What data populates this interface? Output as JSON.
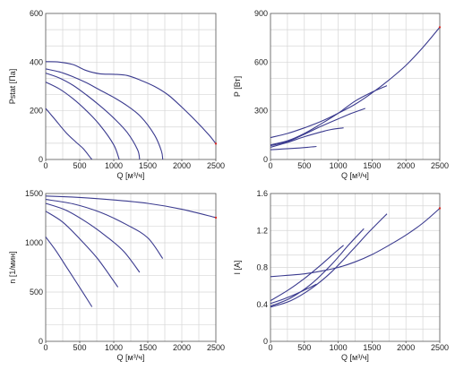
{
  "chart_data": [
    {
      "type": "line",
      "ylabel": "Pstat [Па]",
      "xlabel": "Q [м³/ч]",
      "xlim": [
        0,
        2500
      ],
      "ylim": [
        0,
        600
      ],
      "xticks": [
        0,
        500,
        1000,
        1500,
        2000,
        2500
      ],
      "yticks": [
        0,
        200,
        400,
        600
      ],
      "grid": true,
      "series": [
        {
          "values": [
            [
              0,
              402
            ],
            [
              200,
              400
            ],
            [
              400,
              390
            ],
            [
              600,
              365
            ],
            [
              800,
              352
            ],
            [
              1000,
              350
            ],
            [
              1200,
              345
            ],
            [
              1400,
              325
            ],
            [
              1600,
              300
            ],
            [
              1800,
              265
            ],
            [
              2000,
              215
            ],
            [
              2200,
              160
            ],
            [
              2400,
              100
            ],
            [
              2500,
              65
            ]
          ]
        },
        {
          "values": [
            [
              0,
              372
            ],
            [
              200,
              360
            ],
            [
              400,
              340
            ],
            [
              600,
              315
            ],
            [
              800,
              285
            ],
            [
              1000,
              255
            ],
            [
              1200,
              220
            ],
            [
              1400,
              175
            ],
            [
              1600,
              100
            ],
            [
              1700,
              35
            ],
            [
              1720,
              0
            ]
          ]
        },
        {
          "values": [
            [
              0,
              355
            ],
            [
              200,
              335
            ],
            [
              400,
              305
            ],
            [
              600,
              265
            ],
            [
              800,
              220
            ],
            [
              1000,
              170
            ],
            [
              1200,
              110
            ],
            [
              1350,
              40
            ],
            [
              1380,
              0
            ]
          ]
        },
        {
          "values": [
            [
              0,
              318
            ],
            [
              200,
              290
            ],
            [
              400,
              250
            ],
            [
              600,
              200
            ],
            [
              800,
              140
            ],
            [
              1000,
              60
            ],
            [
              1080,
              0
            ]
          ]
        },
        {
          "values": [
            [
              0,
              210
            ],
            [
              150,
              160
            ],
            [
              300,
              110
            ],
            [
              450,
              70
            ],
            [
              550,
              45
            ],
            [
              650,
              10
            ],
            [
              680,
              0
            ]
          ]
        }
      ]
    },
    {
      "type": "line",
      "ylabel": "P [Вт]",
      "xlabel": "Q [м³/ч]",
      "xlim": [
        0,
        2500
      ],
      "ylim": [
        0,
        900
      ],
      "xticks": [
        0,
        500,
        1000,
        1500,
        2000,
        2500
      ],
      "yticks": [
        0,
        300,
        600,
        900
      ],
      "grid": true,
      "series": [
        {
          "values": [
            [
              0,
              135
            ],
            [
              250,
              160
            ],
            [
              500,
              195
            ],
            [
              750,
              235
            ],
            [
              1000,
              285
            ],
            [
              1250,
              340
            ],
            [
              1500,
              410
            ],
            [
              1750,
              490
            ],
            [
              2000,
              580
            ],
            [
              2250,
              690
            ],
            [
              2500,
              815
            ]
          ]
        },
        {
          "values": [
            [
              0,
              90
            ],
            [
              250,
              115
            ],
            [
              500,
              160
            ],
            [
              750,
              220
            ],
            [
              1000,
              285
            ],
            [
              1250,
              360
            ],
            [
              1500,
              415
            ],
            [
              1720,
              455
            ]
          ]
        },
        {
          "values": [
            [
              0,
              85
            ],
            [
              250,
              110
            ],
            [
              500,
              155
            ],
            [
              750,
              205
            ],
            [
              1000,
              250
            ],
            [
              1200,
              285
            ],
            [
              1400,
              315
            ]
          ]
        },
        {
          "values": [
            [
              0,
              75
            ],
            [
              250,
              105
            ],
            [
              500,
              140
            ],
            [
              750,
              170
            ],
            [
              900,
              185
            ],
            [
              1080,
              195
            ]
          ]
        },
        {
          "values": [
            [
              0,
              60
            ],
            [
              200,
              65
            ],
            [
              400,
              70
            ],
            [
              550,
              75
            ],
            [
              680,
              80
            ]
          ]
        }
      ]
    },
    {
      "type": "line",
      "ylabel": "n [1/мин]",
      "xlabel": "Q [м³/ч]",
      "xlim": [
        0,
        2500
      ],
      "ylim": [
        0,
        1500
      ],
      "xticks": [
        0,
        500,
        1000,
        1500,
        2000,
        2500
      ],
      "yticks": [
        0,
        500,
        1000,
        1500
      ],
      "grid": true,
      "series": [
        {
          "values": [
            [
              0,
              1475
            ],
            [
              500,
              1460
            ],
            [
              1000,
              1435
            ],
            [
              1500,
              1400
            ],
            [
              2000,
              1340
            ],
            [
              2500,
              1255
            ]
          ]
        },
        {
          "values": [
            [
              0,
              1440
            ],
            [
              400,
              1395
            ],
            [
              800,
              1310
            ],
            [
              1200,
              1180
            ],
            [
              1500,
              1050
            ],
            [
              1720,
              840
            ]
          ]
        },
        {
          "values": [
            [
              0,
              1400
            ],
            [
              300,
              1330
            ],
            [
              600,
              1210
            ],
            [
              900,
              1060
            ],
            [
              1150,
              910
            ],
            [
              1380,
              700
            ]
          ]
        },
        {
          "values": [
            [
              0,
              1320
            ],
            [
              250,
              1210
            ],
            [
              500,
              1040
            ],
            [
              750,
              850
            ],
            [
              950,
              660
            ],
            [
              1060,
              550
            ]
          ]
        },
        {
          "values": [
            [
              0,
              1060
            ],
            [
              150,
              920
            ],
            [
              300,
              760
            ],
            [
              450,
              600
            ],
            [
              580,
              460
            ],
            [
              680,
              350
            ]
          ]
        }
      ]
    },
    {
      "type": "line",
      "ylabel": "I [А]",
      "xlabel": "Q [м³/ч]",
      "xlim": [
        0,
        2500
      ],
      "ylim": [
        0,
        1.6
      ],
      "xticks": [
        0,
        500,
        1000,
        1500,
        2000,
        2500
      ],
      "yticks": [
        0,
        0.4,
        0.8,
        1.2,
        1.6
      ],
      "ytickLabels": [
        "0",
        "0.4",
        "0.8",
        "1.2",
        "1.6"
      ],
      "grid": true,
      "series": [
        {
          "values": [
            [
              0,
              0.7
            ],
            [
              250,
              0.715
            ],
            [
              500,
              0.73
            ],
            [
              750,
              0.76
            ],
            [
              1000,
              0.8
            ],
            [
              1250,
              0.86
            ],
            [
              1500,
              0.94
            ],
            [
              1750,
              1.04
            ],
            [
              2000,
              1.15
            ],
            [
              2250,
              1.28
            ],
            [
              2500,
              1.44
            ]
          ]
        },
        {
          "values": [
            [
              0,
              0.37
            ],
            [
              300,
              0.44
            ],
            [
              600,
              0.57
            ],
            [
              900,
              0.75
            ],
            [
              1200,
              0.98
            ],
            [
              1450,
              1.18
            ],
            [
              1720,
              1.38
            ]
          ]
        },
        {
          "values": [
            [
              0,
              0.38
            ],
            [
              300,
              0.47
            ],
            [
              600,
              0.62
            ],
            [
              900,
              0.83
            ],
            [
              1150,
              1.04
            ],
            [
              1380,
              1.22
            ]
          ]
        },
        {
          "values": [
            [
              0,
              0.44
            ],
            [
              250,
              0.55
            ],
            [
              500,
              0.68
            ],
            [
              750,
              0.83
            ],
            [
              950,
              0.96
            ],
            [
              1080,
              1.04
            ]
          ]
        },
        {
          "values": [
            [
              0,
              0.41
            ],
            [
              200,
              0.46
            ],
            [
              400,
              0.52
            ],
            [
              600,
              0.59
            ],
            [
              680,
              0.62
            ]
          ]
        }
      ]
    }
  ]
}
